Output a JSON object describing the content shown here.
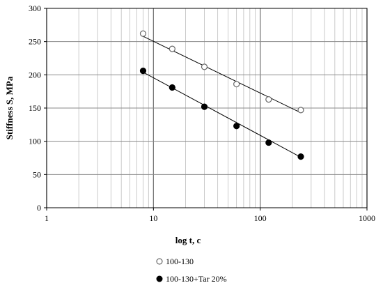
{
  "chart_data": {
    "type": "scatter",
    "title": "",
    "xlabel": "log t, c",
    "ylabel": "Stiffness S, MPa",
    "x_scale": "log",
    "xlim": [
      1,
      1000
    ],
    "ylim": [
      0,
      300
    ],
    "x_ticks": [
      1,
      10,
      100,
      1000
    ],
    "x_tick_labels": [
      "1",
      "10",
      "100",
      "1000"
    ],
    "y_ticks": [
      0,
      50,
      100,
      150,
      200,
      250,
      300
    ],
    "y_tick_labels": [
      "0",
      "50",
      "100",
      "150",
      "200",
      "250",
      "300"
    ],
    "grid": true,
    "legend_position": "bottom",
    "series": [
      {
        "name": "100-130",
        "marker": "open-circle",
        "color": "#000000",
        "x": [
          8,
          15,
          30,
          60,
          120,
          240
        ],
        "y": [
          262,
          239,
          212,
          186,
          163,
          147
        ],
        "trendline": {
          "x": [
            8,
            240
          ],
          "y": [
            258,
            143
          ]
        }
      },
      {
        "name": "100-130+Tar 20%",
        "marker": "filled-circle",
        "color": "#000000",
        "x": [
          8,
          15,
          30,
          60,
          120,
          240
        ],
        "y": [
          206,
          181,
          152,
          123,
          98,
          77
        ],
        "trendline": {
          "x": [
            8,
            240
          ],
          "y": [
            204,
            76
          ]
        }
      }
    ]
  }
}
